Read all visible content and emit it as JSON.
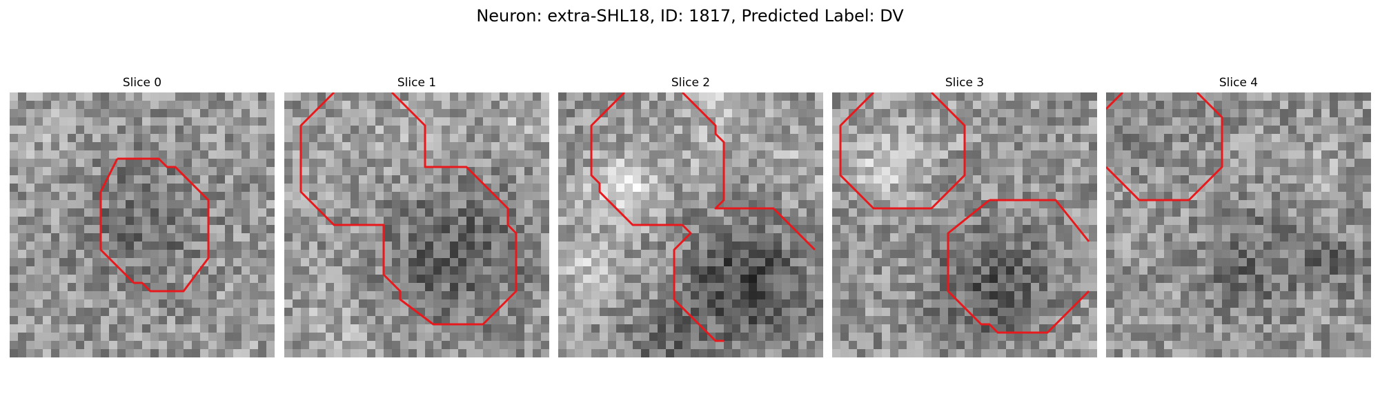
{
  "figure": {
    "title": "Neuron: extra-SHL18, ID: 1817, Predicted Label: DV"
  },
  "panels": [
    {
      "title": "Slice 0"
    },
    {
      "title": "Slice 1"
    },
    {
      "title": "Slice 2"
    },
    {
      "title": "Slice 3"
    },
    {
      "title": "Slice 4"
    }
  ],
  "colors": {
    "contour": "#e8191d"
  }
}
